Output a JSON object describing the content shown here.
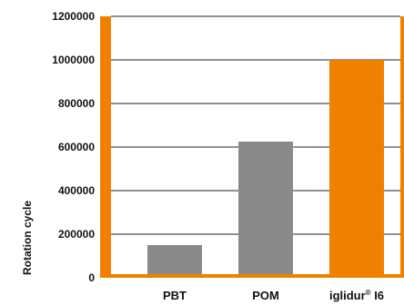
{
  "chart_data": {
    "type": "bar",
    "title": "",
    "xlabel": "",
    "ylabel": "Rotation cycle",
    "categories": [
      {
        "label": "PBT",
        "sup": "",
        "suffix": ""
      },
      {
        "label": "POM",
        "sup": "",
        "suffix": ""
      },
      {
        "label": "iglidur",
        "sup": "®",
        "suffix": " I6"
      }
    ],
    "values": [
      150000,
      625000,
      1000000
    ],
    "bar_colors": [
      "#8a8a8a",
      "#8a8a8a",
      "#f08000"
    ],
    "ylim": [
      0,
      1200000
    ],
    "yticks": [
      0,
      200000,
      400000,
      600000,
      800000,
      1000000,
      1200000
    ],
    "ytick_labels": [
      "0",
      "200000",
      "400000",
      "600000",
      "800000",
      "1000000",
      "1200000"
    ],
    "grid": true,
    "frame_color": "#f08000",
    "grid_color": "#222222"
  }
}
